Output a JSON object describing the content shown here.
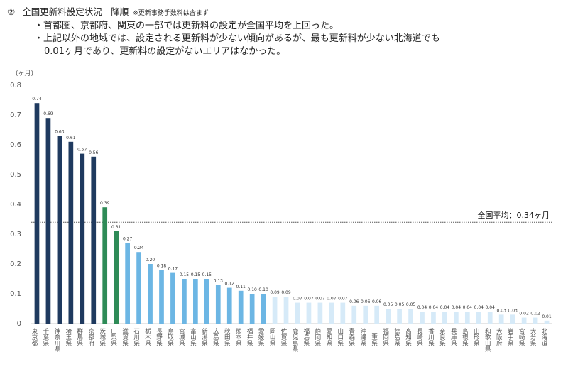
{
  "header": {
    "number": "②",
    "title": "全国更新料設定状況　降順",
    "note": "※更新事務手数料は含まず"
  },
  "bullets": [
    "・首都圏、京都府、関東の一部では更新料の設定が全国平均を上回った。",
    "・上記以外の地域では、設定される更新料が少ない傾向があるが、最も更新料が少ない北海道でも",
    "0.01ヶ月であり、更新料の設定がないエリアはなかった。"
  ],
  "colors": {
    "dark": "#1f3a5f",
    "mid": "#2e8b57",
    "light": "#6cb6e4",
    "pale": "#d6eaf8",
    "axis": "#cccccc",
    "avg_line": "#555555"
  },
  "chart_data": {
    "type": "bar",
    "unit_label": "(ヶ月)",
    "ylim": [
      0,
      0.8
    ],
    "yticks": [
      "0",
      "0.1",
      "0.2",
      "0.3",
      "0.4",
      "0.5",
      "0.6",
      "0.7",
      "0.8"
    ],
    "average": {
      "value": 0.34,
      "label": "全国平均：0.34ヶ月"
    },
    "categories": [
      "東京都",
      "千葉県",
      "神奈川県",
      "埼玉県",
      "群馬県",
      "京都府",
      "茨城県",
      "山梨県",
      "滋賀県",
      "石川県",
      "栃木県",
      "長野県",
      "鳥取県",
      "宮城県",
      "富山県",
      "新潟県",
      "広島県",
      "秋田県",
      "熊本県",
      "福井県",
      "愛媛県",
      "岡山県",
      "佐賀県",
      "鹿児島県",
      "福島県",
      "静岡県",
      "愛知県",
      "山口県",
      "青森県",
      "沖縄県",
      "三重県",
      "福岡県",
      "徳島県",
      "高知県",
      "長崎県",
      "香川県",
      "奈良県",
      "兵庫県",
      "島根県",
      "山形県",
      "和歌山県",
      "大阪府",
      "岩手県",
      "宮崎県",
      "大分県",
      "北海道"
    ],
    "values": [
      0.74,
      0.69,
      0.63,
      0.61,
      0.57,
      0.56,
      0.39,
      0.31,
      0.27,
      0.24,
      0.2,
      0.18,
      0.17,
      0.15,
      0.15,
      0.15,
      0.13,
      0.12,
      0.11,
      0.1,
      0.1,
      0.09,
      0.09,
      0.07,
      0.07,
      0.07,
      0.07,
      0.07,
      0.06,
      0.06,
      0.06,
      0.05,
      0.05,
      0.05,
      0.04,
      0.04,
      0.04,
      0.04,
      0.04,
      0.04,
      0.04,
      0.03,
      0.03,
      0.02,
      0.02,
      0.01
    ],
    "value_labels": [
      "0.74",
      "0.69",
      "0.63",
      "0.61",
      "0.57",
      "0.56",
      "0.39",
      "0.31",
      "0.27",
      "0.24",
      "0.20",
      "0.18",
      "0.17",
      "0.15",
      "0.15",
      "0.15",
      "0.13",
      "0.12",
      "0.11",
      "0.10",
      "0.10",
      "0.09",
      "0.09",
      "0.07",
      "0.07",
      "0.07",
      "0.07",
      "0.07",
      "0.06",
      "0.06",
      "0.06",
      "0.05",
      "0.05",
      "0.05",
      "0.04",
      "0.04",
      "0.04",
      "0.04",
      "0.04",
      "0.04",
      "0.04",
      "0.03",
      "0.03",
      "0.02",
      "0.02",
      "0.01"
    ],
    "grid": false
  }
}
